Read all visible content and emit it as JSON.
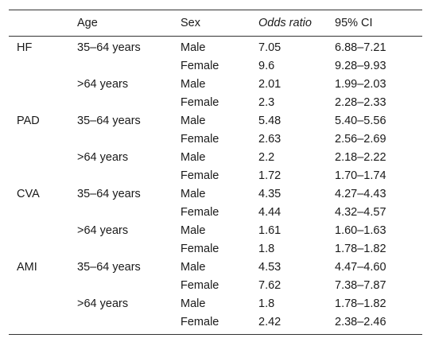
{
  "table": {
    "headers": [
      "",
      "Age",
      "Sex",
      "Odds ratio",
      "95% CI"
    ],
    "rows": [
      [
        "HF",
        "35–64 years",
        "Male",
        "7.05",
        "6.88–7.21"
      ],
      [
        "",
        "",
        "Female",
        "9.6",
        "9.28–9.93"
      ],
      [
        "",
        ">64 years",
        "Male",
        "2.01",
        "1.99–2.03"
      ],
      [
        "",
        "",
        "Female",
        "2.3",
        "2.28–2.33"
      ],
      [
        "PAD",
        "35–64 years",
        "Male",
        "5.48",
        "5.40–5.56"
      ],
      [
        "",
        "",
        "Female",
        "2.63",
        "2.56–2.69"
      ],
      [
        "",
        ">64 years",
        "Male",
        "2.2",
        "2.18–2.22"
      ],
      [
        "",
        "",
        "Female",
        "1.72",
        "1.70–1.74"
      ],
      [
        "CVA",
        "35–64 years",
        "Male",
        "4.35",
        "4.27–4.43"
      ],
      [
        "",
        "",
        "Female",
        "4.44",
        "4.32–4.57"
      ],
      [
        "",
        ">64 years",
        "Male",
        "1.61",
        "1.60–1.63"
      ],
      [
        "",
        "",
        "Female",
        "1.8",
        "1.78–1.82"
      ],
      [
        "AMI",
        "35–64 years",
        "Male",
        "4.53",
        "4.47–4.60"
      ],
      [
        "",
        "",
        "Female",
        "7.62",
        "7.38–7.87"
      ],
      [
        "",
        ">64 years",
        "Male",
        "1.8",
        "1.78–1.82"
      ],
      [
        "",
        "",
        "Female",
        "2.42",
        "2.38–2.46"
      ]
    ]
  }
}
